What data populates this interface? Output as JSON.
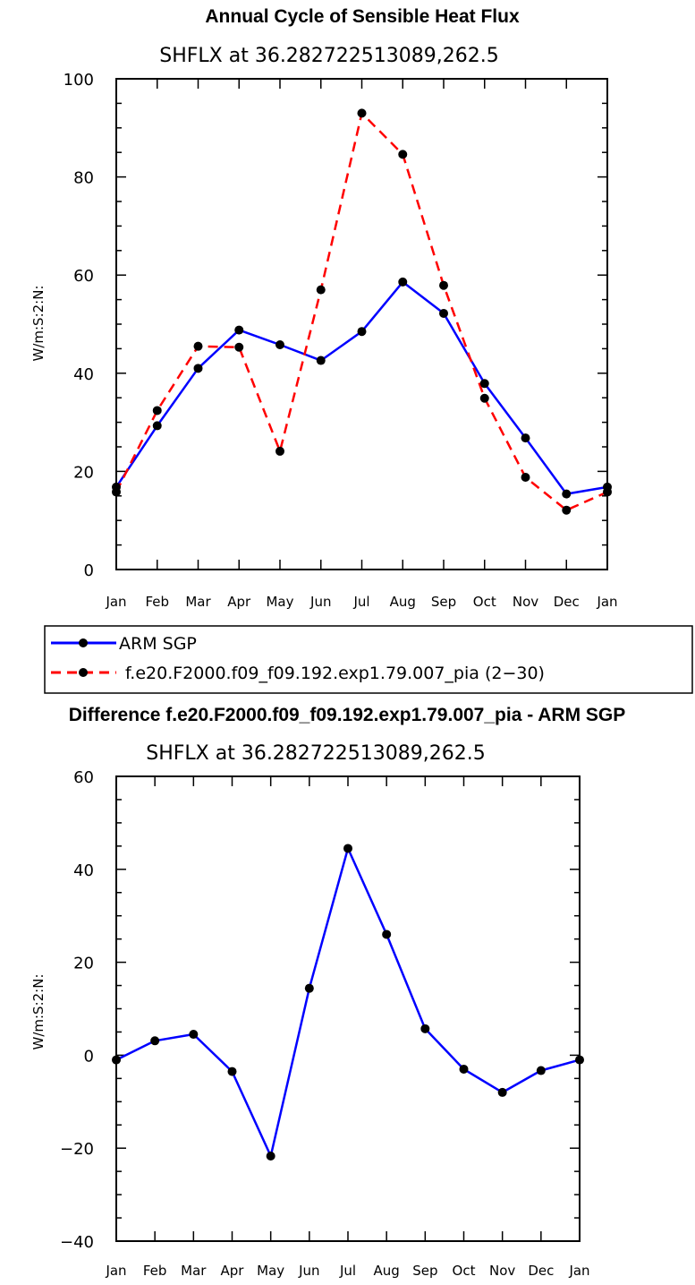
{
  "chart_data": [
    {
      "type": "line",
      "title": "Annual Cycle of Sensible Heat Flux",
      "subtitle": "SHFLX at 36.282722513089,262.5",
      "ylabel": "W/m:S:2:N:",
      "xlabel": "",
      "ylim": [
        0,
        100
      ],
      "yticks": [
        "0",
        "20",
        "40",
        "60",
        "80",
        "100"
      ],
      "categories": [
        "Jan",
        "Feb",
        "Mar",
        "Apr",
        "May",
        "Jun",
        "Jul",
        "Aug",
        "Sep",
        "Oct",
        "Nov",
        "Dec",
        "Jan"
      ],
      "series": [
        {
          "name": "ARM SGP",
          "color": "#0000ff",
          "dash": "solid",
          "values": [
            16.8,
            29.3,
            41.0,
            48.8,
            45.8,
            42.6,
            48.5,
            58.6,
            52.2,
            37.9,
            26.8,
            15.4,
            16.8
          ]
        },
        {
          "name": "f.e20.F2000.f09_f09.192.exp1.79.007_pia (2−30)",
          "color": "#ff0000",
          "dash": "dashed",
          "values": [
            15.8,
            32.4,
            45.5,
            45.3,
            24.1,
            57.0,
            93.0,
            84.6,
            57.9,
            34.9,
            18.8,
            12.1,
            15.8
          ]
        }
      ],
      "legend_position": "below"
    },
    {
      "type": "line",
      "title": "Difference f.e20.F2000.f09_f09.192.exp1.79.007_pia - ARM SGP",
      "subtitle": "SHFLX at 36.282722513089,262.5",
      "ylabel": "W/m:S:2:N:",
      "xlabel": "",
      "ylim": [
        -40,
        60
      ],
      "yticks": [
        "−40",
        "−20",
        "0",
        "20",
        "40",
        "60"
      ],
      "categories": [
        "Jan",
        "Feb",
        "Mar",
        "Apr",
        "May",
        "Jun",
        "Jul",
        "Aug",
        "Sep",
        "Oct",
        "Nov",
        "Dec",
        "Jan"
      ],
      "series": [
        {
          "name": "Difference",
          "color": "#0000ff",
          "dash": "solid",
          "values": [
            -1.0,
            3.1,
            4.5,
            -3.5,
            -21.7,
            14.4,
            44.5,
            26.0,
            5.7,
            -3.0,
            -8.0,
            -3.3,
            -1.0
          ]
        }
      ]
    }
  ]
}
